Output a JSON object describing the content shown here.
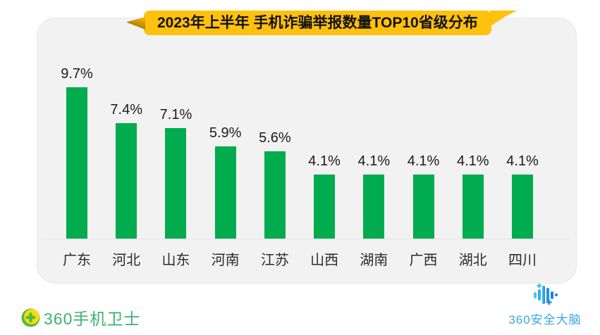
{
  "banner": {
    "title": "2023年上半年 手机诈骗举报数量TOP10省级分布",
    "bg_color": "#FFC10D",
    "text_color": "#121212"
  },
  "chart_data": {
    "type": "bar",
    "title": "2023年上半年 手机诈骗举报数量TOP10省级分布",
    "categories": [
      "广东",
      "河北",
      "山东",
      "河南",
      "江苏",
      "山西",
      "湖南",
      "广西",
      "湖北",
      "四川"
    ],
    "values": [
      9.7,
      7.4,
      7.1,
      5.9,
      5.6,
      4.1,
      4.1,
      4.1,
      4.1,
      4.1
    ],
    "value_labels": [
      "9.7%",
      "7.4%",
      "7.1%",
      "5.9%",
      "5.6%",
      "4.1%",
      "4.1%",
      "4.1%",
      "4.1%",
      "4.1%"
    ],
    "xlabel": "",
    "ylabel": "",
    "ylim": [
      0,
      10
    ],
    "unit": "%",
    "grid": false,
    "legend": false,
    "bar_color": "#00AC4D",
    "background_color": "#F1F2F1"
  },
  "footer": {
    "left_logo": {
      "text": "360手机卫士",
      "color": "#3CB370",
      "icon": "plus-circle-icon"
    },
    "right_logo": {
      "text": "360安全大脑",
      "color": "#38A9E0",
      "icon": "equalizer-brain-icon"
    }
  }
}
